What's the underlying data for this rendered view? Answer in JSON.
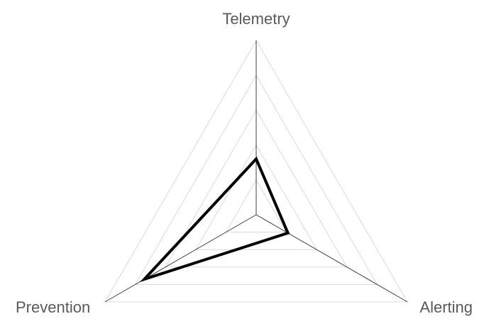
{
  "chart_data": {
    "type": "radar",
    "axes": [
      "Telemetry",
      "Alerting",
      "Prevention"
    ],
    "rmax": 5,
    "grid_steps": 5,
    "grid": true,
    "legend": "none",
    "series": [
      {
        "values": [
          1.6,
          1.05,
          3.7
        ],
        "color": "#000000"
      }
    ],
    "colors": {
      "grid": "#d9d9d9",
      "axis": "#404040",
      "label": "#595959"
    }
  }
}
